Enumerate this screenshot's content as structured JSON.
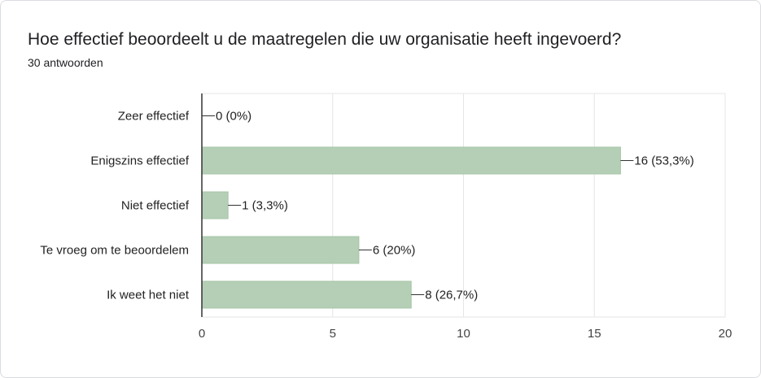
{
  "header": {
    "question": "Hoe effectief beoordeelt u de maatregelen die uw organisatie heeft ingevoerd?",
    "responses": "30 antwoorden"
  },
  "colors": {
    "bar": "#b4cfb5",
    "barStroke": "#a6c4a7",
    "grid": "#e6e6e6",
    "axis": "#333333"
  },
  "chart_data": {
    "type": "bar",
    "orientation": "horizontal",
    "title": "Hoe effectief beoordeelt u de maatregelen die uw organisatie heeft ingevoerd?",
    "subtitle": "30 antwoorden",
    "categories": [
      "Zeer effectief",
      "Enigszins effectief",
      "Niet effectief",
      "Te vroeg om te beoordelem",
      "Ik weet het niet"
    ],
    "values": [
      0,
      16,
      1,
      6,
      8
    ],
    "data_labels": [
      "0 (0%)",
      "16 (53,3%)",
      "1 (3,3%)",
      "6 (20%)",
      "8 (26,7%)"
    ],
    "xlim": [
      0,
      20
    ],
    "xticks": [
      0,
      5,
      10,
      15,
      20
    ],
    "xlabel": "",
    "ylabel": "",
    "grid": true,
    "legend": "none"
  }
}
